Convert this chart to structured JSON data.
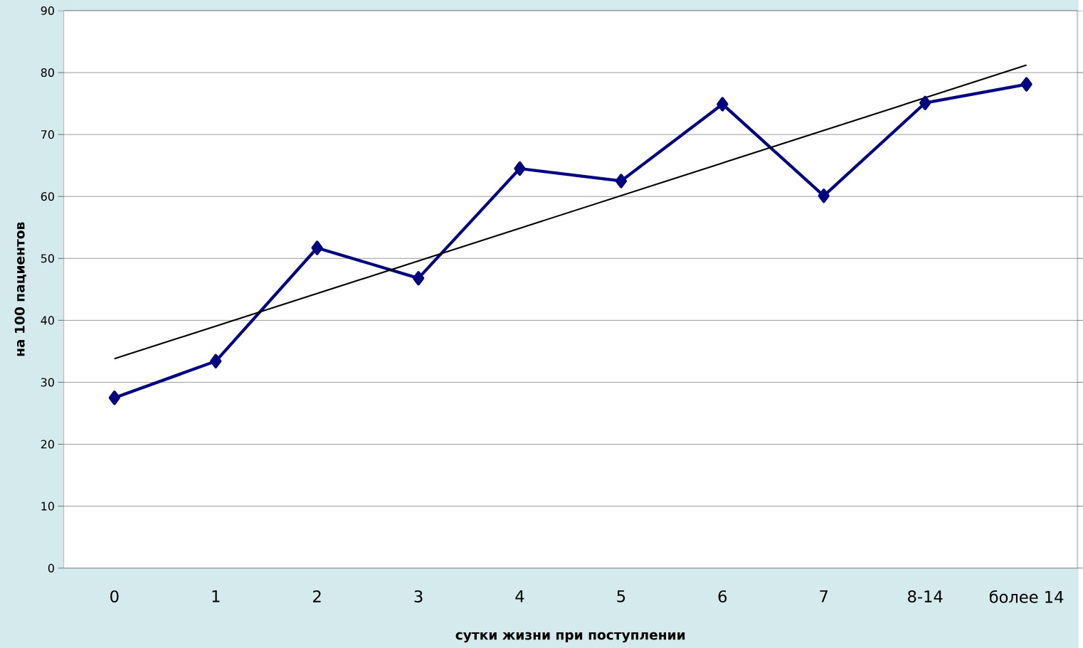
{
  "chart_data": {
    "type": "line",
    "xlabel": "сутки жизни при поступлении",
    "ylabel": "на 100 пациентов",
    "categories": [
      "0",
      "1",
      "2",
      "3",
      "4",
      "5",
      "6",
      "7",
      "8-14",
      "более 14"
    ],
    "series": [
      {
        "color": "#000080",
        "values": [
          27.5,
          33.4,
          51.7,
          46.8,
          64.5,
          62.5,
          74.9,
          60.1,
          75.1,
          78.1
        ],
        "marker": "diamond"
      },
      {
        "type": "line",
        "color": "#000000",
        "x": [
          "0",
          "более 14"
        ],
        "values": [
          33.8,
          81.2
        ],
        "marker": "none"
      }
    ],
    "ylim": [
      0,
      90
    ],
    "yticks": [
      0,
      10,
      20,
      30,
      40,
      50,
      60,
      70,
      80,
      90
    ],
    "grid": "y",
    "line_style": "solid"
  }
}
